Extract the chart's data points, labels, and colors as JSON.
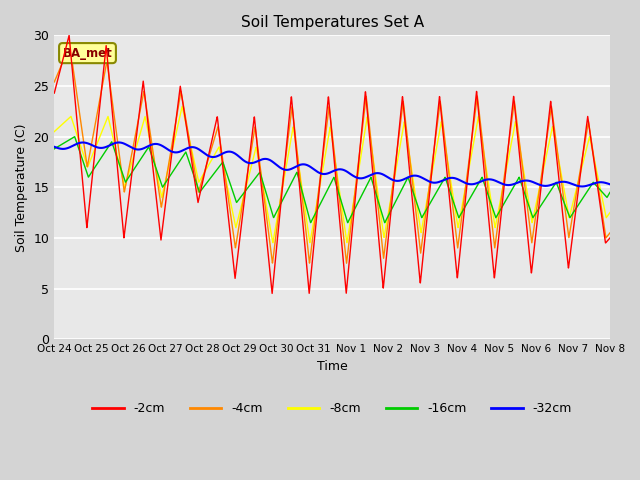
{
  "title": "Soil Temperatures Set A",
  "xlabel": "Time",
  "ylabel": "Soil Temperature (C)",
  "ylim": [
    0,
    30
  ],
  "xlim": [
    0,
    15
  ],
  "series_labels": [
    "-2cm",
    "-4cm",
    "-8cm",
    "-16cm",
    "-32cm"
  ],
  "series_colors": [
    "#ff0000",
    "#ff8800",
    "#ffff00",
    "#00cc00",
    "#0000ff"
  ],
  "xtick_labels": [
    "Oct 24",
    "Oct 25",
    "Oct 26",
    "Oct 27",
    "Oct 28",
    "Oct 29",
    "Oct 30",
    "Oct 31",
    "Nov 1",
    "Nov 2",
    "Nov 3",
    "Nov 4",
    "Nov 5",
    "Nov 6",
    "Nov 7",
    "Nov 8"
  ],
  "annotation_text": "BA_met",
  "annotation_box_color": "#ffff99",
  "annotation_text_color": "#880000",
  "fig_bg": "#d4d4d4",
  "plot_bg": "#e8e8e8",
  "grid_color": "#ffffff"
}
